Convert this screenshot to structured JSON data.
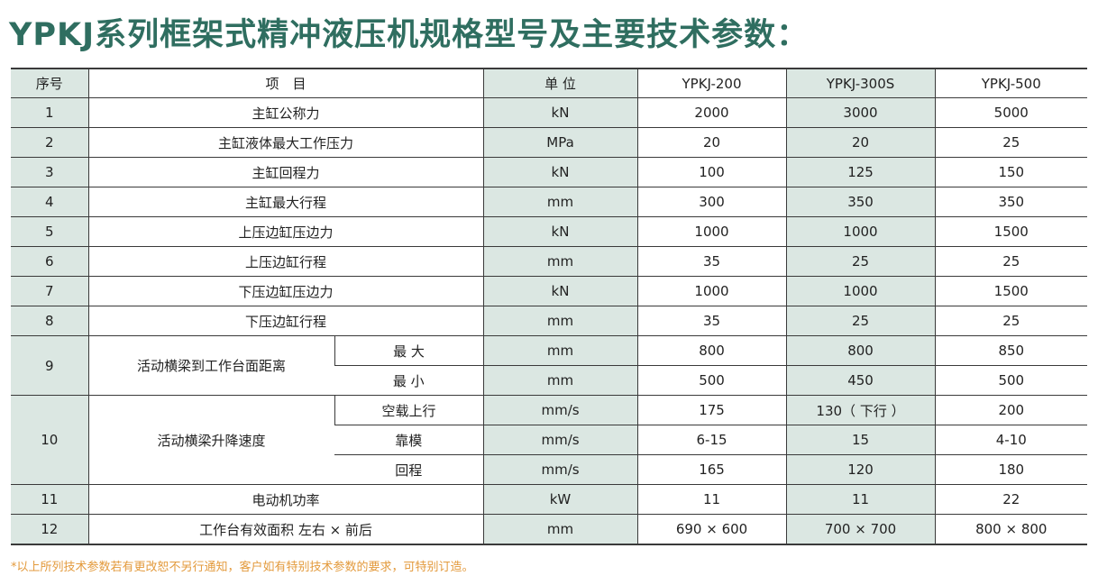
{
  "title": "YPKJ系列框架式精冲液压机规格型号及主要技术参数：",
  "header": {
    "seq": "序号",
    "item": "项　目",
    "unit": "单 位",
    "models": [
      "YPKJ-200",
      "YPKJ-300S",
      "YPKJ-500"
    ]
  },
  "rows": {
    "r1": {
      "seq": "1",
      "item": "主缸公称力",
      "unit": "kN",
      "v": [
        "2000",
        "3000",
        "5000"
      ]
    },
    "r2": {
      "seq": "2",
      "item": "主缸液体最大工作压力",
      "unit": "MPa",
      "v": [
        "20",
        "20",
        "25"
      ]
    },
    "r3": {
      "seq": "3",
      "item": "主缸回程力",
      "unit": "kN",
      "v": [
        "100",
        "125",
        "150"
      ]
    },
    "r4": {
      "seq": "4",
      "item": "主缸最大行程",
      "unit": "mm",
      "v": [
        "300",
        "350",
        "350"
      ]
    },
    "r5": {
      "seq": "5",
      "item": "上压边缸压边力",
      "unit": "kN",
      "v": [
        "1000",
        "1000",
        "1500"
      ]
    },
    "r6": {
      "seq": "6",
      "item": "上压边缸行程",
      "unit": "mm",
      "v": [
        "35",
        "25",
        "25"
      ]
    },
    "r7": {
      "seq": "7",
      "item": "下压边缸压边力",
      "unit": "kN",
      "v": [
        "1000",
        "1000",
        "1500"
      ]
    },
    "r8": {
      "seq": "8",
      "item": "下压边缸行程",
      "unit": "mm",
      "v": [
        "35",
        "25",
        "25"
      ]
    },
    "r9": {
      "seq": "9",
      "item": "活动横梁到工作台面距离",
      "sub": [
        {
          "name": "最 大",
          "unit": "mm",
          "v": [
            "800",
            "800",
            "850"
          ]
        },
        {
          "name": "最 小",
          "unit": "mm",
          "v": [
            "500",
            "450",
            "500"
          ]
        }
      ]
    },
    "r10": {
      "seq": "10",
      "item": "活动横梁升降速度",
      "sub": [
        {
          "name": "空载上行",
          "unit": "mm/s",
          "v": [
            "175",
            "130（ 下行 ）",
            "200"
          ]
        },
        {
          "name": "靠模",
          "unit": "mm/s",
          "v": [
            "6-15",
            "15",
            "4-10"
          ]
        },
        {
          "name": "回程",
          "unit": "mm/s",
          "v": [
            "165",
            "120",
            "180"
          ]
        }
      ]
    },
    "r11": {
      "seq": "11",
      "item": "电动机功率",
      "unit": "kW",
      "v": [
        "11",
        "11",
        "22"
      ]
    },
    "r12": {
      "seq": "12",
      "item": "工作台有效面积  左右 × 前后",
      "unit": "mm",
      "v": [
        "690 × 600",
        "700 × 700",
        "800 × 800"
      ]
    }
  },
  "footnote": "*以上所列技术参数若有更改恕不另行通知，客户如有特别技术参数的要求，可特别订造。",
  "colors": {
    "title": "#2f6e60",
    "shade": "#dbe7e2",
    "footnote": "#e39a3c"
  }
}
